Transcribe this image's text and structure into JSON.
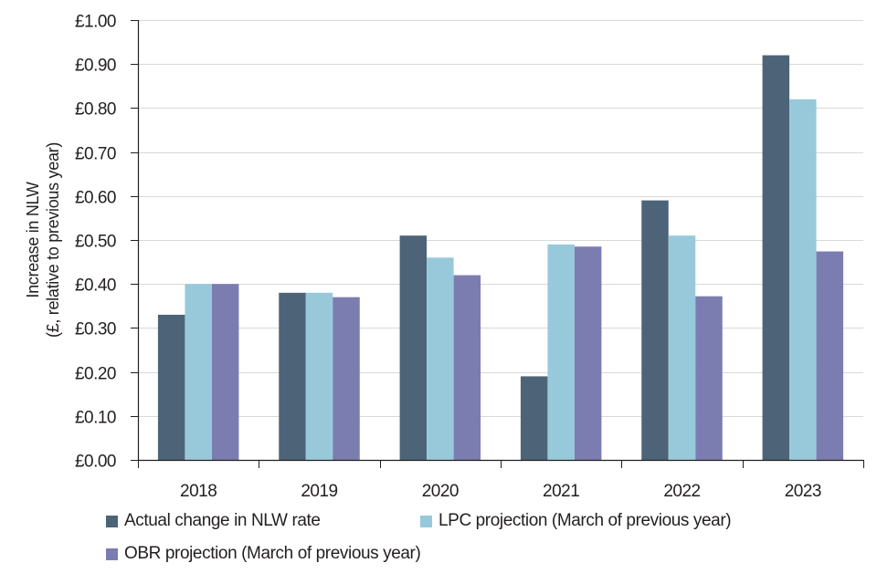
{
  "chart_data": {
    "type": "bar",
    "title": "",
    "xlabel": "",
    "ylabel": "Increase in NLW",
    "ylabel_line2": "(£, relative to previous year)",
    "ylim": [
      0,
      1.0
    ],
    "yticks": [
      0.0,
      0.1,
      0.2,
      0.3,
      0.4,
      0.5,
      0.6,
      0.7,
      0.8,
      0.9,
      1.0
    ],
    "ytick_labels": [
      "£0.00",
      "£0.10",
      "£0.20",
      "£0.30",
      "£0.40",
      "£0.50",
      "£0.60",
      "£0.70",
      "£0.80",
      "£0.90",
      "£1.00"
    ],
    "grid": true,
    "legend_position": "bottom",
    "categories": [
      "2018",
      "2019",
      "2020",
      "2021",
      "2022",
      "2023"
    ],
    "series": [
      {
        "name": "Actual change in NLW rate",
        "color": "#4d6478",
        "values": [
          0.33,
          0.38,
          0.51,
          0.19,
          0.59,
          0.92
        ]
      },
      {
        "name": "LPC projection (March of previous year)",
        "color": "#98c9db",
        "values": [
          0.4,
          0.38,
          0.46,
          0.49,
          0.51,
          0.82
        ]
      },
      {
        "name": "OBR projection (March of previous year)",
        "color": "#7b7db1",
        "values": [
          0.4,
          0.37,
          0.42,
          0.485,
          0.372,
          0.474
        ]
      }
    ]
  }
}
